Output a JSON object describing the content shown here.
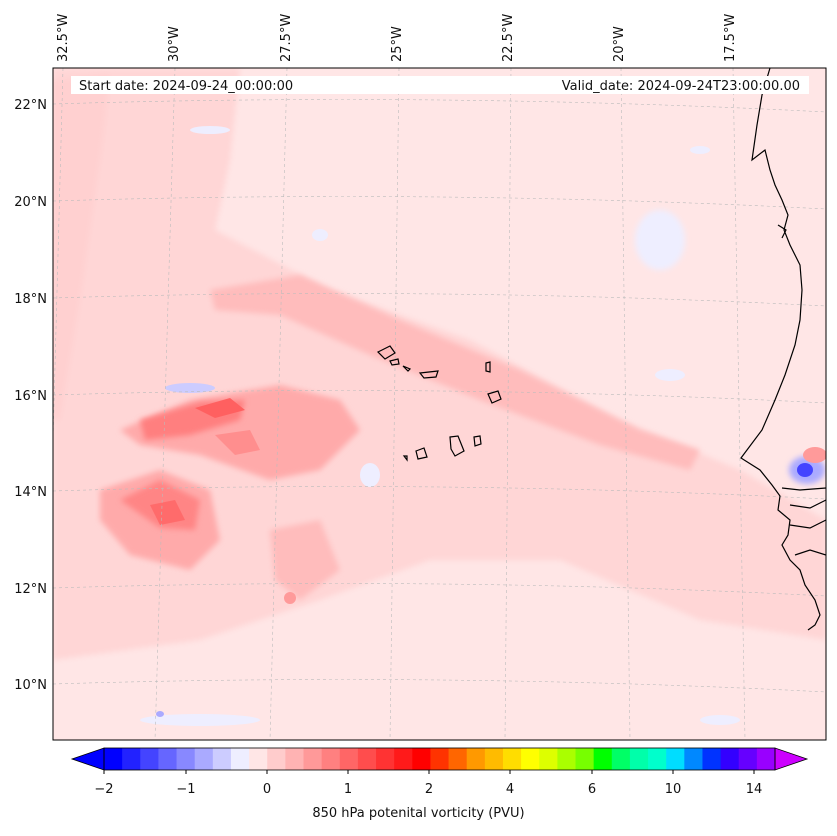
{
  "header": {
    "start_text": "Start date: 2024-09-24_00:00:00",
    "valid_text": "Valid_date: 2024-09-24T23:00:00.00"
  },
  "map": {
    "lon_labels": [
      "32.5°W",
      "30°W",
      "27.5°W",
      "25°W",
      "22.5°W",
      "20°W",
      "17.5°W"
    ],
    "lat_labels": [
      "22°N",
      "20°N",
      "18°N",
      "16°N",
      "14°N",
      "12°N",
      "10°N"
    ],
    "gridlines": true,
    "features": [
      "Cabo Verde islands",
      "West African coastline"
    ]
  },
  "colorbar": {
    "label": "850 hPa potenital vorticity (PVU)",
    "tick_labels": [
      "−2",
      "−1",
      "0",
      "1",
      "2",
      "4",
      "6",
      "10",
      "14"
    ],
    "extend": "both",
    "colors": [
      "#0000ff",
      "#2222ff",
      "#4444ff",
      "#6666ff",
      "#8888ff",
      "#aaaaff",
      "#ccccff",
      "#eeeeff",
      "#ffe6e6",
      "#ffcccc",
      "#ffb3b3",
      "#ff9999",
      "#ff8080",
      "#ff6666",
      "#ff4d4d",
      "#ff3333",
      "#ff1a1a",
      "#ff0000",
      "#ff3300",
      "#ff6600",
      "#ff9900",
      "#ffbb00",
      "#ffdd00",
      "#ffff00",
      "#ddff00",
      "#aaff00",
      "#77ff00",
      "#00ff00",
      "#00ff66",
      "#00ffaa",
      "#00ffcc",
      "#00ddff",
      "#0088ff",
      "#0033ff",
      "#3300ff",
      "#6600ff",
      "#9900ff"
    ],
    "min_color": "#0000ff",
    "max_color": "#cc00ff"
  }
}
